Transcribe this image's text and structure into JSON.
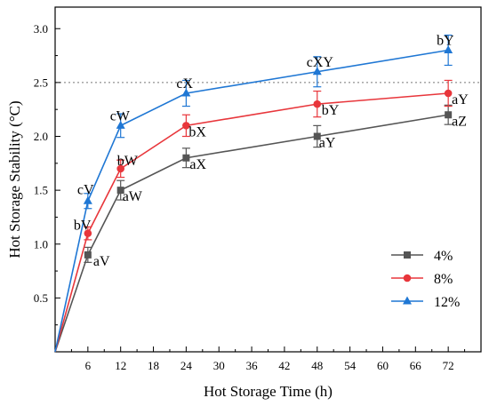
{
  "chart_data": {
    "type": "line",
    "xlabel": "Hot Storage Time (h)",
    "ylabel": "Hot Storage Stability (°C)",
    "xlim": [
      0,
      78
    ],
    "ylim": [
      0,
      3.2
    ],
    "x_ticks": [
      6,
      12,
      18,
      24,
      30,
      36,
      42,
      48,
      54,
      60,
      66,
      72
    ],
    "y_ticks": [
      0.5,
      1.0,
      1.5,
      2.0,
      2.5,
      3.0
    ],
    "x_tick_labels": [
      "6",
      "12",
      "18",
      "24",
      "30",
      "36",
      "42",
      "48",
      "54",
      "60",
      "66",
      "72"
    ],
    "y_tick_labels": [
      "0.5",
      "1.0",
      "1.5",
      "2.0",
      "2.5",
      "3.0"
    ],
    "reference_line_y": 2.5,
    "legend_position": "bottom-right",
    "grid": false,
    "x": [
      0,
      6,
      12,
      24,
      48,
      72
    ],
    "series": [
      {
        "name": "4%",
        "color": "#555555",
        "marker": "square",
        "values": [
          0,
          0.9,
          1.5,
          1.8,
          2.0,
          2.2
        ],
        "errors": [
          0,
          0.07,
          0.09,
          0.09,
          0.1,
          0.09
        ],
        "labels": [
          "",
          "aV",
          "aW",
          "aX",
          "aY",
          "aZ"
        ]
      },
      {
        "name": "8%",
        "color": "#e8363b",
        "marker": "circle",
        "values": [
          0,
          1.1,
          1.7,
          2.1,
          2.3,
          2.4
        ],
        "errors": [
          0,
          0.06,
          0.08,
          0.1,
          0.12,
          0.12
        ],
        "labels": [
          "",
          "bV",
          "bW",
          "bX",
          "bY",
          "aY"
        ]
      },
      {
        "name": "12%",
        "color": "#1f77d4",
        "marker": "triangle",
        "values": [
          0,
          1.4,
          2.1,
          2.4,
          2.6,
          2.8
        ],
        "errors": [
          0,
          0.07,
          0.11,
          0.12,
          0.14,
          0.14
        ],
        "labels": [
          "",
          "cV",
          "cW",
          "cX",
          "cXY",
          "bY"
        ]
      }
    ]
  }
}
